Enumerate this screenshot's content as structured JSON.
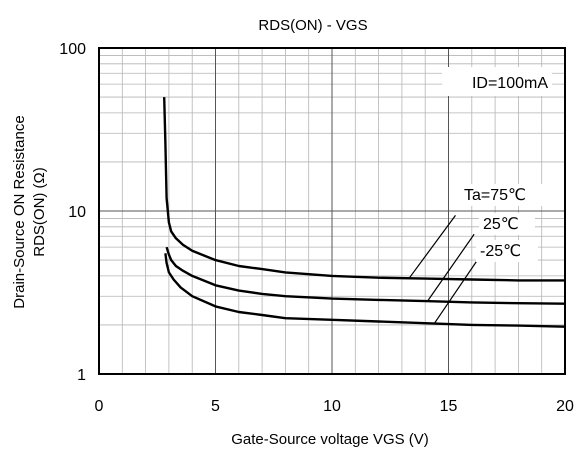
{
  "chart_data": {
    "type": "line",
    "title": "RDS(ON) - VGS",
    "xlabel": "Gate-Source voltage VGS (V)",
    "ylabel_lines": [
      "Drain-Source ON  Resistance",
      "RDS(ON) (Ω)"
    ],
    "xlim": [
      0,
      20
    ],
    "ylim": [
      1,
      100
    ],
    "yscale": "log",
    "grid": true,
    "x_ticks": [
      {
        "value": 0,
        "label": "0"
      },
      {
        "value": 5,
        "label": "5"
      },
      {
        "value": 10,
        "label": "10"
      },
      {
        "value": 15,
        "label": "15"
      },
      {
        "value": 20,
        "label": "20"
      }
    ],
    "y_ticks": [
      {
        "value": 1,
        "label": "1"
      },
      {
        "value": 10,
        "label": "10"
      },
      {
        "value": 100,
        "label": "100"
      }
    ],
    "condition_label": "ID=100mA",
    "series": [
      {
        "name": "Ta=75℃",
        "x": [
          2.8,
          2.85,
          2.9,
          3.0,
          3.1,
          3.3,
          3.6,
          4.0,
          5.0,
          6.0,
          7.0,
          8.0,
          10.0,
          12.0,
          14.0,
          16.0,
          18.0,
          20.0
        ],
        "y": [
          50,
          26,
          12,
          8.5,
          7.5,
          6.8,
          6.2,
          5.7,
          5.0,
          4.6,
          4.4,
          4.2,
          4.0,
          3.9,
          3.85,
          3.8,
          3.75,
          3.75
        ]
      },
      {
        "name": "25℃",
        "x": [
          2.9,
          3.0,
          3.1,
          3.3,
          3.6,
          4.0,
          5.0,
          6.0,
          7.0,
          8.0,
          10.0,
          12.0,
          14.0,
          16.0,
          18.0,
          20.0
        ],
        "y": [
          6.0,
          5.4,
          5.0,
          4.6,
          4.3,
          4.0,
          3.5,
          3.25,
          3.1,
          3.0,
          2.9,
          2.85,
          2.8,
          2.75,
          2.72,
          2.7
        ]
      },
      {
        "name": "-25℃",
        "x": [
          2.85,
          2.9,
          3.0,
          3.2,
          3.5,
          4.0,
          5.0,
          6.0,
          7.0,
          8.0,
          10.0,
          12.0,
          14.0,
          16.0,
          18.0,
          20.0
        ],
        "y": [
          5.5,
          4.8,
          4.2,
          3.8,
          3.4,
          3.0,
          2.6,
          2.4,
          2.3,
          2.2,
          2.15,
          2.1,
          2.05,
          2.0,
          1.98,
          1.95
        ]
      }
    ]
  }
}
